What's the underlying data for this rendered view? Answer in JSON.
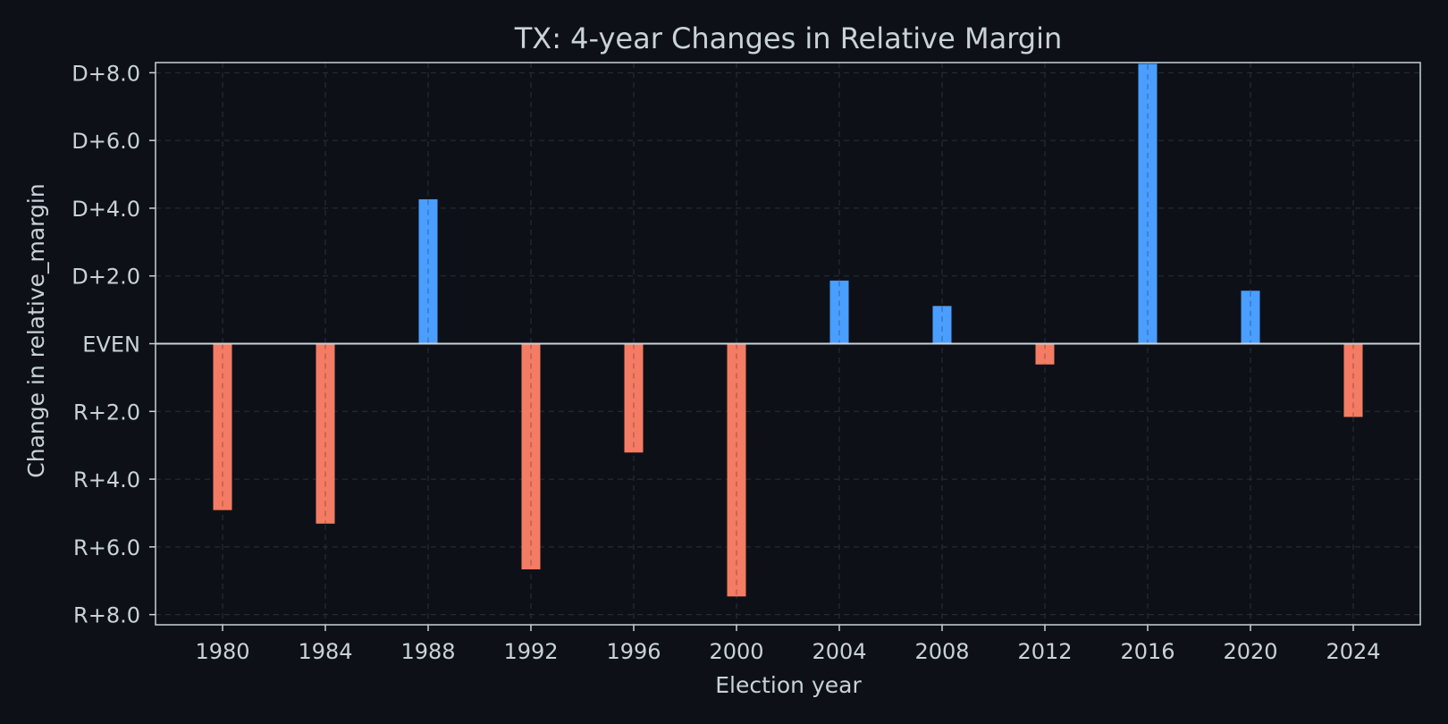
{
  "chart_data": {
    "type": "bar",
    "title": "TX: 4-year Changes in Relative Margin",
    "xlabel": "Election year",
    "ylabel": "Change in relative_margin",
    "categories": [
      "1980",
      "1984",
      "1988",
      "1992",
      "1996",
      "2000",
      "2004",
      "2008",
      "2012",
      "2016",
      "2020",
      "2024"
    ],
    "values": [
      -4.9,
      -5.3,
      4.25,
      -6.65,
      -3.2,
      -7.45,
      1.85,
      1.1,
      -0.6,
      8.25,
      1.55,
      -2.15
    ],
    "ylim": [
      -8.3,
      8.3
    ],
    "yticks": [
      {
        "value": 8,
        "label": "D+8.0"
      },
      {
        "value": 6,
        "label": "D+6.0"
      },
      {
        "value": 4,
        "label": "D+4.0"
      },
      {
        "value": 2,
        "label": "D+2.0"
      },
      {
        "value": 0,
        "label": "EVEN"
      },
      {
        "value": -2,
        "label": "R+2.0"
      },
      {
        "value": -4,
        "label": "R+4.0"
      },
      {
        "value": -6,
        "label": "R+6.0"
      },
      {
        "value": -8,
        "label": "R+8.0"
      }
    ],
    "grid": true,
    "colors": {
      "background": "#0d1117",
      "dem": "#4a9eff",
      "rep": "#f47c64",
      "text": "#c9d1d9",
      "axis": "#c9d1d9",
      "grid": "#2a2f38"
    }
  }
}
